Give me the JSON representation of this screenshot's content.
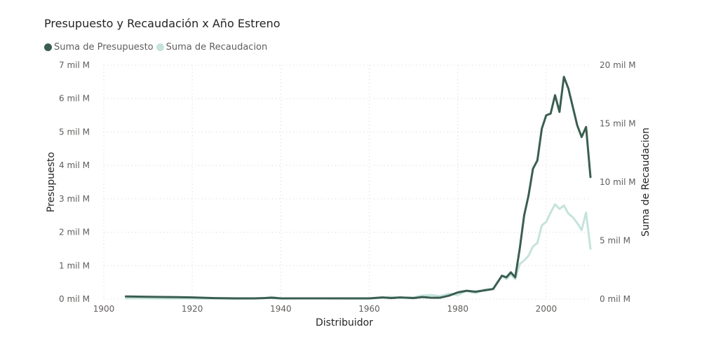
{
  "chart_data": {
    "type": "line",
    "title": "Presupuesto y Recaudación x Año Estreno",
    "xlabel": "Distribuidor",
    "ylabel": "Presupuesto",
    "y2label": "Suma de Recaudacion",
    "xlim": [
      1900,
      2010
    ],
    "ylim": [
      0,
      7000
    ],
    "y2lim": [
      0,
      20000
    ],
    "x_ticks": [
      1900,
      1920,
      1940,
      1960,
      1980,
      2000
    ],
    "y_ticks": [
      "0 mil M",
      "1 mil M",
      "2 mil M",
      "3 mil M",
      "4 mil M",
      "5 mil M",
      "6 mil M",
      "7 mil M"
    ],
    "y_tick_values": [
      0,
      1000,
      2000,
      3000,
      4000,
      5000,
      6000,
      7000
    ],
    "y2_ticks": [
      "0 mil M",
      "5 mil M",
      "10 mil M",
      "15 mil M",
      "20 mil M"
    ],
    "y2_tick_values": [
      0,
      5000,
      10000,
      15000,
      20000
    ],
    "grid": true,
    "legend_position": "top-left",
    "series": [
      {
        "name": "Suma de Presupuesto",
        "color": "#3a5e50",
        "axis": "left",
        "x": [
          1905,
          1910,
          1915,
          1920,
          1925,
          1930,
          1934,
          1936,
          1938,
          1940,
          1945,
          1950,
          1955,
          1960,
          1963,
          1965,
          1967,
          1970,
          1972,
          1974,
          1976,
          1978,
          1980,
          1982,
          1984,
          1986,
          1988,
          1990,
          1991,
          1992,
          1993,
          1994,
          1995,
          1996,
          1997,
          1998,
          1999,
          2000,
          2001,
          2002,
          2003,
          2004,
          2005,
          2006,
          2007,
          2008,
          2009,
          2010
        ],
        "values": [
          80,
          70,
          60,
          50,
          30,
          20,
          20,
          30,
          40,
          20,
          20,
          20,
          20,
          20,
          50,
          30,
          50,
          30,
          60,
          40,
          40,
          100,
          200,
          250,
          220,
          260,
          300,
          700,
          650,
          800,
          650,
          1500,
          2500,
          3100,
          3900,
          4150,
          5100,
          5500,
          5550,
          6100,
          5600,
          6650,
          6300,
          5750,
          5200,
          4850,
          5150,
          3650
        ]
      },
      {
        "name": "Suma de Recaudacion",
        "color": "#c5e3dc",
        "axis": "right",
        "x": [
          1905,
          1910,
          1915,
          1920,
          1925,
          1930,
          1934,
          1936,
          1938,
          1940,
          1945,
          1950,
          1955,
          1960,
          1963,
          1965,
          1967,
          1970,
          1972,
          1974,
          1976,
          1978,
          1980,
          1982,
          1984,
          1986,
          1988,
          1990,
          1991,
          1992,
          1993,
          1994,
          1995,
          1996,
          1997,
          1998,
          1999,
          2000,
          2001,
          2002,
          2003,
          2004,
          2005,
          2006,
          2007,
          2008,
          2009,
          2010
        ],
        "values": [
          60,
          60,
          50,
          50,
          40,
          30,
          40,
          60,
          200,
          50,
          60,
          60,
          50,
          50,
          100,
          200,
          100,
          150,
          300,
          350,
          250,
          450,
          350,
          700,
          500,
          800,
          900,
          2000,
          1700,
          2100,
          1700,
          3000,
          3300,
          3700,
          4500,
          4800,
          6300,
          6600,
          7400,
          8100,
          7700,
          8000,
          7300,
          7000,
          6500,
          5900,
          7400,
          4300
        ]
      }
    ]
  }
}
